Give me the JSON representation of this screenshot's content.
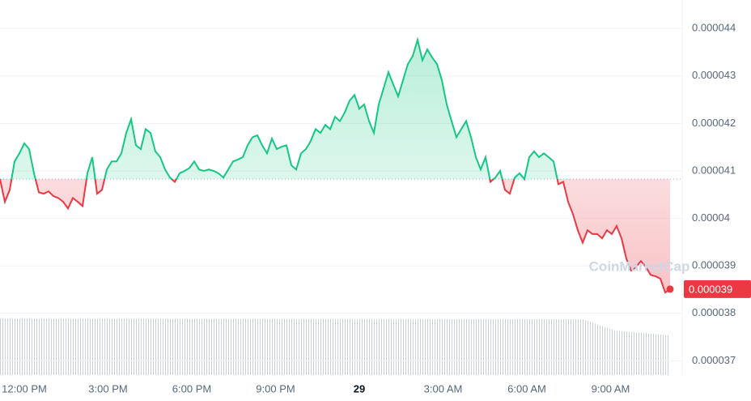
{
  "chart_data": {
    "type": "line",
    "series": [
      {
        "name": "Price",
        "color": "#16c784",
        "below_color": "#ea3943",
        "values": [
          4.083e-05,
          4.035e-05,
          4.06e-05,
          4.12e-05,
          4.137e-05,
          4.158e-05,
          4.146e-05,
          4.095e-05,
          4.055e-05,
          4.052e-05,
          4.057e-05,
          4.047e-05,
          4.043e-05,
          4.035e-05,
          4.021e-05,
          4.043e-05,
          4.035e-05,
          4.026e-05,
          4.095e-05,
          4.129e-05,
          4.052e-05,
          4.06e-05,
          4.103e-05,
          4.12e-05,
          4.12e-05,
          4.137e-05,
          4.18e-05,
          4.209e-05,
          4.154e-05,
          4.146e-05,
          4.188e-05,
          4.18e-05,
          4.141e-05,
          4.129e-05,
          4.103e-05,
          4.086e-05,
          4.077e-05,
          4.095e-05,
          4.1e-05,
          4.106e-05,
          4.12e-05,
          4.103e-05,
          4.1e-05,
          4.103e-05,
          4.1e-05,
          4.095e-05,
          4.086e-05,
          4.103e-05,
          4.12e-05,
          4.124e-05,
          4.129e-05,
          4.154e-05,
          4.171e-05,
          4.175e-05,
          4.154e-05,
          4.137e-05,
          4.168e-05,
          4.146e-05,
          4.151e-05,
          4.154e-05,
          4.112e-05,
          4.103e-05,
          4.137e-05,
          4.146e-05,
          4.163e-05,
          4.188e-05,
          4.18e-05,
          4.197e-05,
          4.188e-05,
          4.214e-05,
          4.205e-05,
          4.223e-05,
          4.248e-05,
          4.26e-05,
          4.231e-05,
          4.24e-05,
          4.205e-05,
          4.18e-05,
          4.24e-05,
          4.274e-05,
          4.308e-05,
          4.282e-05,
          4.257e-05,
          4.291e-05,
          4.325e-05,
          4.342e-05,
          4.376e-05,
          4.333e-05,
          4.356e-05,
          4.339e-05,
          4.325e-05,
          4.291e-05,
          4.24e-05,
          4.205e-05,
          4.171e-05,
          4.188e-05,
          4.205e-05,
          4.171e-05,
          4.129e-05,
          4.103e-05,
          4.129e-05,
          4.077e-05,
          4.086e-05,
          4.1e-05,
          4.06e-05,
          4.052e-05,
          4.086e-05,
          4.095e-05,
          4.083e-05,
          4.129e-05,
          4.141e-05,
          4.129e-05,
          4.137e-05,
          4.129e-05,
          4.12e-05,
          4.072e-05,
          4.077e-05,
          4.035e-05,
          4.009e-05,
          3.975e-05,
          3.949e-05,
          3.975e-05,
          3.967e-05,
          3.967e-05,
          3.958e-05,
          3.975e-05,
          3.967e-05,
          3.984e-05,
          3.958e-05,
          3.915e-05,
          3.89e-05,
          3.898e-05,
          3.91e-05,
          3.898e-05,
          3.881e-05,
          3.878e-05,
          3.873e-05,
          3.844e-05,
          3.851e-05
        ]
      }
    ],
    "baseline": 4.083e-05,
    "current_price": {
      "value": 3.851e-05,
      "label": "0.000039"
    },
    "x_tick_labels": [
      "12:00 PM",
      "3:00 PM",
      "6:00 PM",
      "9:00 PM",
      "29",
      "3:00 AM",
      "6:00 AM",
      "9:00 AM"
    ],
    "ylim": [
      3.67e-05,
      4.46e-05
    ],
    "yticks": [
      4.4e-05,
      4.3e-05,
      4.2e-05,
      4.1e-05,
      4e-05,
      3.9e-05,
      3.8e-05,
      3.7e-05
    ],
    "grid": true,
    "watermark": "CoinMarketCap"
  }
}
